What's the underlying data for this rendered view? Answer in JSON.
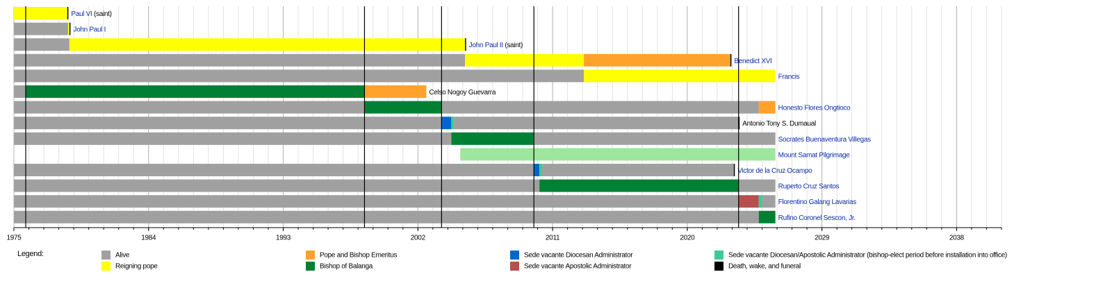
{
  "chart_data": {
    "type": "timeline",
    "xlim": [
      1975,
      2041
    ],
    "xticks": [
      1975,
      1984,
      1993,
      2002,
      2011,
      2020,
      2029,
      2038
    ],
    "grid": true,
    "legend_title": "Legend:",
    "series": [
      {
        "name": "Alive",
        "color": "#a0a0a0"
      },
      {
        "name": "Reigning pope",
        "color": "#ffff00"
      },
      {
        "name": "Pope and Bishop Emeritus",
        "color": "#ffa22c"
      },
      {
        "name": "Bishop of Balanga",
        "color": "#008033"
      },
      {
        "name": "Sede vacante Diocesan Administrator",
        "color": "#0066cc"
      },
      {
        "name": "Sede vacante Apostolic Administrator",
        "color": "#b5504f"
      },
      {
        "name": "Sede vacante Diocesan/Apostolic Administrator (bishop-elect period before installation into office)",
        "color": "#3ccb96"
      },
      {
        "name": "Death, wake, and funeral",
        "color": "#000000"
      }
    ],
    "event_lines": [
      1975.79,
      1998.43,
      2003.58,
      2009.75,
      2023.43
    ],
    "rows": [
      {
        "label": "Paul VI",
        "note": "(saint)",
        "link": true,
        "segments": [
          {
            "start": 1975,
            "end": 1978.57,
            "status": "Reigning pope"
          },
          {
            "start": 1978.57,
            "end": 1978.62,
            "status": "Death, wake, and funeral"
          }
        ]
      },
      {
        "label": "John Paul I",
        "link": true,
        "segments": [
          {
            "start": 1975,
            "end": 1978.62,
            "status": "Alive"
          },
          {
            "start": 1978.62,
            "end": 1978.71,
            "status": "Reigning pope"
          },
          {
            "start": 1978.71,
            "end": 1978.76,
            "status": "Death, wake, and funeral"
          }
        ]
      },
      {
        "label": "John Paul II",
        "note": "(saint)",
        "link": true,
        "segments": [
          {
            "start": 1975,
            "end": 1978.71,
            "status": "Alive"
          },
          {
            "start": 1978.71,
            "end": 2005.15,
            "status": "Reigning pope"
          },
          {
            "start": 2005.15,
            "end": 2005.2,
            "status": "Death, wake, and funeral"
          }
        ]
      },
      {
        "label": "Benedict XVI",
        "link": true,
        "segments": [
          {
            "start": 1975,
            "end": 2005.15,
            "status": "Alive"
          },
          {
            "start": 2005.15,
            "end": 2013.09,
            "status": "Reigning pope"
          },
          {
            "start": 2013.09,
            "end": 2022.88,
            "status": "Pope and Bishop Emeritus"
          },
          {
            "start": 2022.88,
            "end": 2022.95,
            "status": "Death, wake, and funeral"
          }
        ]
      },
      {
        "label": "Francis",
        "link": true,
        "segments": [
          {
            "start": 1975,
            "end": 2013.09,
            "status": "Alive"
          },
          {
            "start": 2013.09,
            "end": 2025.89,
            "status": "Reigning pope"
          }
        ]
      },
      {
        "label": "Celso Nogoy Guevarra",
        "link": false,
        "segments": [
          {
            "start": 1975,
            "end": 1975.79,
            "status": "Alive"
          },
          {
            "start": 1975.79,
            "end": 1998.43,
            "status": "Bishop of Balanga"
          },
          {
            "start": 1998.43,
            "end": 2002.56,
            "status": "Pope and Bishop Emeritus"
          }
        ]
      },
      {
        "label": "Honesto Flores Ongtioco",
        "link": true,
        "segments": [
          {
            "start": 1975,
            "end": 1998.43,
            "status": "Alive"
          },
          {
            "start": 1998.43,
            "end": 2003.58,
            "status": "Bishop of Balanga"
          },
          {
            "start": 2003.58,
            "end": 2024.78,
            "status": "Alive"
          },
          {
            "start": 2024.78,
            "end": 2025.89,
            "status": "Pope and Bishop Emeritus"
          }
        ]
      },
      {
        "label": "Antonio Tony S. Dumaual",
        "link": false,
        "segments": [
          {
            "start": 1975,
            "end": 2003.58,
            "status": "Alive"
          },
          {
            "start": 2003.58,
            "end": 2004.23,
            "status": "Sede vacante Diocesan Administrator"
          },
          {
            "start": 2004.23,
            "end": 2004.41,
            "status": "Sede vacante Diocesan/Apostolic Administrator (bishop-elect period before installation into office)"
          },
          {
            "start": 2004.41,
            "end": 2023.43,
            "status": "Alive"
          },
          {
            "start": 2023.43,
            "end": 2023.48,
            "status": "Death, wake, and funeral"
          }
        ]
      },
      {
        "label": "Socrates Buenaventura Villegas",
        "link": true,
        "segments": [
          {
            "start": 1975,
            "end": 2004.23,
            "status": "Alive"
          },
          {
            "start": 2004.23,
            "end": 2009.75,
            "status": "Bishop of Balanga"
          },
          {
            "start": 2009.75,
            "end": 2025.89,
            "status": "Alive"
          }
        ]
      },
      {
        "label": "Mount Samat Pilgrimage",
        "link": true,
        "segments": [
          {
            "start": 2004.83,
            "end": 2025.89,
            "color": "#9de69d"
          }
        ]
      },
      {
        "label": "Victor de la Cruz Ocampo",
        "link": true,
        "segments": [
          {
            "start": 1975,
            "end": 2009.75,
            "status": "Alive"
          },
          {
            "start": 2009.75,
            "end": 2010.12,
            "status": "Sede vacante Diocesan Administrator"
          },
          {
            "start": 2010.12,
            "end": 2010.3,
            "status": "Sede vacante Diocesan/Apostolic Administrator (bishop-elect period before installation into office)"
          },
          {
            "start": 2010.3,
            "end": 2023.11,
            "status": "Alive"
          },
          {
            "start": 2023.11,
            "end": 2023.16,
            "status": "Death, wake, and funeral"
          }
        ]
      },
      {
        "label": "Ruperto Cruz Santos",
        "link": true,
        "segments": [
          {
            "start": 1975,
            "end": 2010.12,
            "status": "Alive"
          },
          {
            "start": 2010.12,
            "end": 2023.43,
            "status": "Bishop of Balanga"
          },
          {
            "start": 2023.43,
            "end": 2025.89,
            "status": "Alive"
          }
        ]
      },
      {
        "label": "Florentino Galang Lavarias",
        "link": true,
        "segments": [
          {
            "start": 1975,
            "end": 2023.43,
            "status": "Alive"
          },
          {
            "start": 2023.43,
            "end": 2024.78,
            "status": "Sede vacante Apostolic Administrator"
          },
          {
            "start": 2024.78,
            "end": 2025.01,
            "status": "Sede vacante Diocesan/Apostolic Administrator (bishop-elect period before installation into office)"
          },
          {
            "start": 2025.01,
            "end": 2025.89,
            "status": "Alive"
          }
        ]
      },
      {
        "label": "Rufino Coronel Sescon, Jr.",
        "link": true,
        "segments": [
          {
            "start": 1975,
            "end": 2024.78,
            "status": "Alive"
          },
          {
            "start": 2024.78,
            "end": 2025.89,
            "status": "Bishop of Balanga"
          }
        ]
      }
    ]
  }
}
